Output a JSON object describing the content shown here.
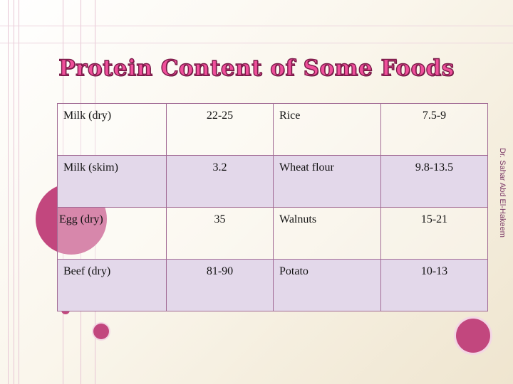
{
  "title": "Protein Content of Some Foods",
  "author_vertical": "Dr. Sahar Abd El-Hakeem",
  "rows": [
    {
      "food1": "Milk (dry)",
      "value1": "22-25",
      "food2": "Rice",
      "value2": "7.5-9"
    },
    {
      "food1": "Milk (skim)",
      "value1": "3.2",
      "food2": "Wheat flour",
      "value2": "9.8-13.5"
    },
    {
      "food1": "Egg (dry)",
      "value1": "35",
      "food2": "Walnuts",
      "value2": "15-21"
    },
    {
      "food1": "Beef (dry)",
      "value1": "81-90",
      "food2": "Potato",
      "value2": "10-13"
    }
  ],
  "colors": {
    "accent": "#c2477e",
    "title_fill": "#ef4f9b",
    "border": "#a26b95",
    "row_shade": "#e3d8ea"
  }
}
